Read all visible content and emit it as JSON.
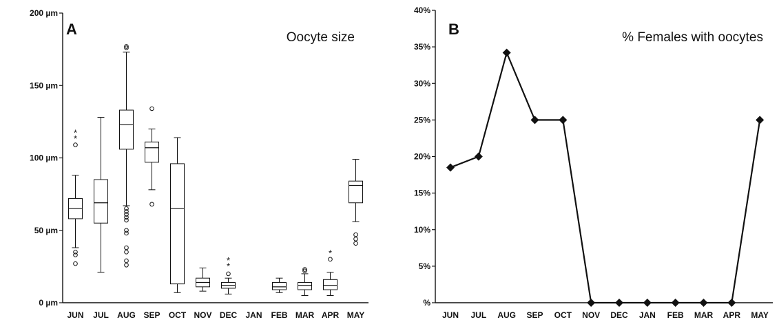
{
  "chart_data": [
    {
      "type": "box",
      "panel_label": "A",
      "title": "Oocyte size",
      "categories": [
        "JUN",
        "JUL",
        "AUG",
        "SEP",
        "OCT",
        "NOV",
        "DEC",
        "JAN",
        "FEB",
        "MAR",
        "APR",
        "MAY"
      ],
      "y_ticks": [
        {
          "value": 0,
          "label": "0 µm"
        },
        {
          "value": 50,
          "label": "50 µm"
        },
        {
          "value": 100,
          "label": "100 µm"
        },
        {
          "value": 150,
          "label": "150 µm"
        },
        {
          "value": 200,
          "label": "200 µm"
        }
      ],
      "ylim": [
        0,
        200
      ],
      "boxes": [
        {
          "category": "JUN",
          "min": 38,
          "q1": 58,
          "median": 65,
          "q3": 72,
          "max": 88,
          "outliers": [
            33,
            35,
            27,
            109
          ],
          "extremes": [
            118,
            114
          ]
        },
        {
          "category": "JUL",
          "min": 21,
          "q1": 55,
          "median": 69,
          "q3": 85,
          "max": 128,
          "outliers": [],
          "extremes": []
        },
        {
          "category": "AUG",
          "min": 67,
          "q1": 106,
          "median": 123,
          "q3": 133,
          "max": 173,
          "outliers": [
            176,
            177,
            65,
            63,
            61,
            59,
            57,
            50,
            48,
            38,
            35,
            29,
            26
          ],
          "extremes": []
        },
        {
          "category": "SEP",
          "min": 78,
          "q1": 97,
          "median": 107,
          "q3": 111,
          "max": 120,
          "outliers": [
            134,
            68
          ],
          "extremes": []
        },
        {
          "category": "OCT",
          "min": 7,
          "q1": 13,
          "median": 65,
          "q3": 96,
          "max": 114,
          "outliers": [],
          "extremes": []
        },
        {
          "category": "NOV",
          "min": 8,
          "q1": 11,
          "median": 14,
          "q3": 17,
          "max": 24,
          "outliers": [],
          "extremes": []
        },
        {
          "category": "DEC",
          "min": 6,
          "q1": 10,
          "median": 12,
          "q3": 14,
          "max": 17,
          "outliers": [
            20
          ],
          "extremes": [
            26,
            30
          ]
        },
        {
          "category": "FEB",
          "min": 7,
          "q1": 9,
          "median": 11,
          "q3": 14,
          "max": 17,
          "outliers": [],
          "extremes": []
        },
        {
          "category": "MAR",
          "min": 5,
          "q1": 9,
          "median": 12,
          "q3": 14,
          "max": 20,
          "outliers": [
            22,
            23
          ],
          "extremes": []
        },
        {
          "category": "APR",
          "min": 5,
          "q1": 9,
          "median": 12,
          "q3": 16,
          "max": 21,
          "outliers": [
            30
          ],
          "extremes": [
            35
          ]
        },
        {
          "category": "MAY",
          "min": 56,
          "q1": 69,
          "median": 81,
          "q3": 84,
          "max": 99,
          "outliers": [
            47,
            44,
            41
          ],
          "extremes": []
        }
      ]
    },
    {
      "type": "line",
      "panel_label": "B",
      "title": "% Females with oocytes",
      "categories": [
        "JUN",
        "JUL",
        "AUG",
        "SEP",
        "OCT",
        "NOV",
        "DEC",
        "JAN",
        "FEB",
        "MAR",
        "APR",
        "MAY"
      ],
      "values": [
        18.5,
        20,
        34.2,
        25,
        25,
        0,
        0,
        0,
        0,
        0,
        0,
        25
      ],
      "y_ticks": [
        {
          "value": 0,
          "label": "%"
        },
        {
          "value": 5,
          "label": "5%"
        },
        {
          "value": 10,
          "label": "10%"
        },
        {
          "value": 15,
          "label": "15%"
        },
        {
          "value": 20,
          "label": "20%"
        },
        {
          "value": 25,
          "label": "25%"
        },
        {
          "value": 30,
          "label": "30%"
        },
        {
          "value": 35,
          "label": "35%"
        },
        {
          "value": 40,
          "label": "40%"
        }
      ],
      "ylim": [
        0,
        40
      ]
    }
  ]
}
